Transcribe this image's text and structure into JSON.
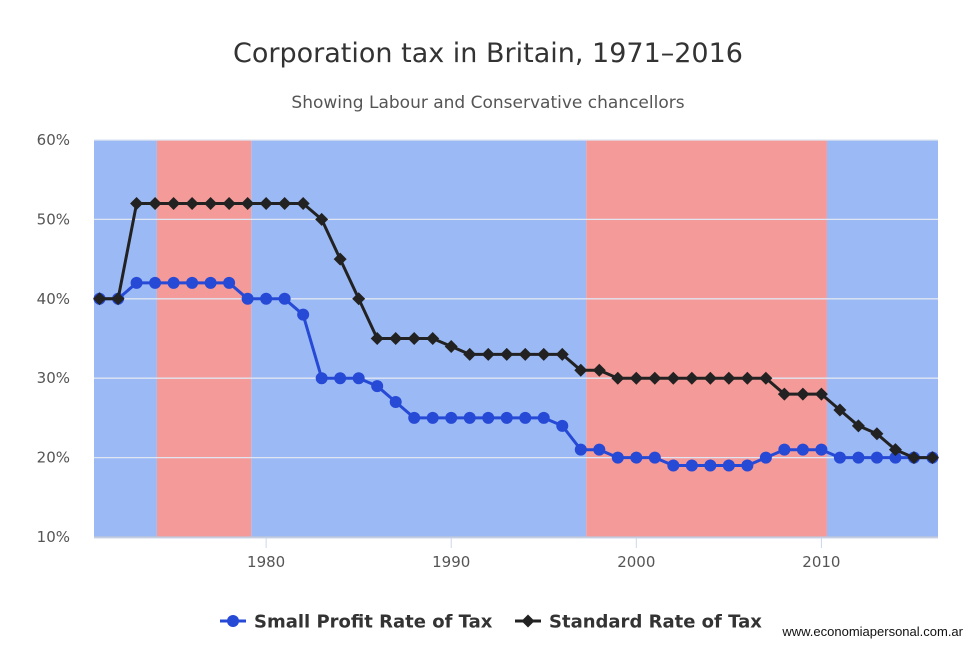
{
  "chart_data": {
    "type": "line",
    "title": "Corporation tax in Britain, 1971–2016",
    "subtitle": "Showing Labour and Conservative chancellors",
    "xlim": [
      1970.7,
      2016.3
    ],
    "ylim": [
      10,
      60
    ],
    "yticks": [
      10,
      20,
      30,
      40,
      50,
      60
    ],
    "ytick_labels": [
      "10%",
      "20%",
      "30%",
      "40%",
      "50%",
      "60%"
    ],
    "xticks": [
      1980,
      1990,
      2000,
      2010
    ],
    "xtick_labels": [
      "1980",
      "1990",
      "2000",
      "2010"
    ],
    "grid": true,
    "legend_position": "bottom-center",
    "bands": [
      {
        "from": 1970.7,
        "to": 1974.1,
        "color": "#9bbaf5"
      },
      {
        "from": 1974.1,
        "to": 1979.2,
        "color": "#f49a99"
      },
      {
        "from": 1979.2,
        "to": 1997.3,
        "color": "#9bbaf5"
      },
      {
        "from": 1997.3,
        "to": 2010.3,
        "color": "#f49a99"
      },
      {
        "from": 2010.3,
        "to": 2016.3,
        "color": "#9bbaf5"
      }
    ],
    "x": [
      1971,
      1972,
      1973,
      1974,
      1975,
      1976,
      1977,
      1978,
      1979,
      1980,
      1981,
      1982,
      1983,
      1984,
      1985,
      1986,
      1987,
      1988,
      1989,
      1990,
      1991,
      1992,
      1993,
      1994,
      1995,
      1996,
      1997,
      1998,
      1999,
      2000,
      2001,
      2002,
      2003,
      2004,
      2005,
      2006,
      2007,
      2008,
      2009,
      2010,
      2011,
      2012,
      2013,
      2014,
      2015,
      2016
    ],
    "series": [
      {
        "name": "Small Profit Rate of Tax",
        "color": "#2649d6",
        "marker": "circle",
        "values": [
          40,
          40,
          42,
          42,
          42,
          42,
          42,
          42,
          40,
          40,
          40,
          38,
          30,
          30,
          30,
          29,
          27,
          25,
          25,
          25,
          25,
          25,
          25,
          25,
          25,
          24,
          21,
          21,
          20,
          20,
          20,
          19,
          19,
          19,
          19,
          19,
          20,
          21,
          21,
          21,
          20,
          20,
          20,
          20,
          20,
          20
        ]
      },
      {
        "name": "Standard Rate of Tax",
        "color": "#222222",
        "marker": "diamond",
        "values": [
          40,
          40,
          52,
          52,
          52,
          52,
          52,
          52,
          52,
          52,
          52,
          52,
          50,
          45,
          40,
          35,
          35,
          35,
          35,
          34,
          33,
          33,
          33,
          33,
          33,
          33,
          31,
          31,
          30,
          30,
          30,
          30,
          30,
          30,
          30,
          30,
          30,
          28,
          28,
          28,
          26,
          24,
          23,
          21,
          20,
          20
        ]
      }
    ]
  },
  "watermark": "www.economiapersonal.com.ar"
}
